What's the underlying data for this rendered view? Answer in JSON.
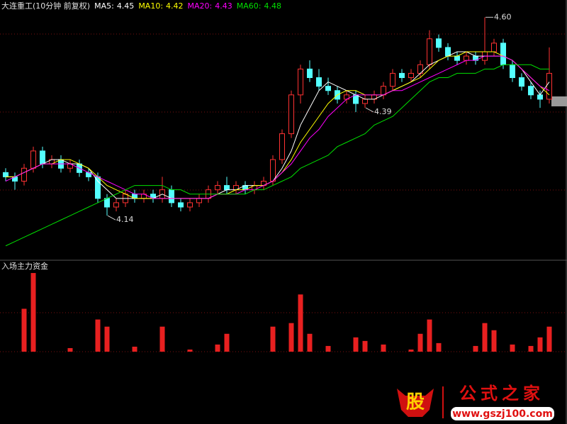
{
  "chart_data": [
    {
      "type": "candlestick",
      "title": "大连重工(10分钟 前复权)",
      "open": [
        4.24,
        4.23,
        4.22,
        4.25,
        4.29,
        4.26,
        4.27,
        4.25,
        4.26,
        4.24,
        4.23,
        4.18,
        4.16,
        4.17,
        4.19,
        4.18,
        4.19,
        4.18,
        4.2,
        4.17,
        4.16,
        4.17,
        4.18,
        4.2,
        4.21,
        4.2,
        4.21,
        4.2,
        4.21,
        4.22,
        4.27,
        4.33,
        4.42,
        4.48,
        4.46,
        4.44,
        4.43,
        4.41,
        4.42,
        4.4,
        4.41,
        4.42,
        4.44,
        4.47,
        4.46,
        4.47,
        4.49,
        4.55,
        4.53,
        4.51,
        4.5,
        4.51,
        4.5,
        4.52,
        4.54,
        4.49,
        4.46,
        4.44,
        4.42,
        4.41
      ],
      "high": [
        4.25,
        4.24,
        4.26,
        4.3,
        4.3,
        4.28,
        4.28,
        4.27,
        4.27,
        4.25,
        4.24,
        4.19,
        4.18,
        4.2,
        4.2,
        4.2,
        4.2,
        4.23,
        4.21,
        4.18,
        4.18,
        4.19,
        4.21,
        4.22,
        4.23,
        4.22,
        4.22,
        4.22,
        4.23,
        4.28,
        4.34,
        4.43,
        4.49,
        4.5,
        4.48,
        4.46,
        4.44,
        4.43,
        4.43,
        4.42,
        4.43,
        4.45,
        4.48,
        4.48,
        4.48,
        4.5,
        4.57,
        4.56,
        4.54,
        4.52,
        4.52,
        4.52,
        4.6,
        4.55,
        4.55,
        4.5,
        4.47,
        4.45,
        4.43,
        4.53
      ],
      "low": [
        4.22,
        4.2,
        4.21,
        4.24,
        4.25,
        4.25,
        4.24,
        4.24,
        4.23,
        4.22,
        4.17,
        4.14,
        4.15,
        4.16,
        4.17,
        4.17,
        4.17,
        4.17,
        4.16,
        4.15,
        4.15,
        4.16,
        4.17,
        4.19,
        4.19,
        4.19,
        4.19,
        4.19,
        4.2,
        4.21,
        4.26,
        4.32,
        4.4,
        4.45,
        4.43,
        4.42,
        4.4,
        4.4,
        4.38,
        4.39,
        4.4,
        4.41,
        4.43,
        4.45,
        4.45,
        4.46,
        4.48,
        4.52,
        4.5,
        4.49,
        4.49,
        4.49,
        4.49,
        4.51,
        4.48,
        4.45,
        4.43,
        4.41,
        4.39,
        4.4
      ],
      "close": [
        4.23,
        4.22,
        4.25,
        4.29,
        4.26,
        4.27,
        4.25,
        4.26,
        4.24,
        4.23,
        4.18,
        4.16,
        4.17,
        4.19,
        4.18,
        4.19,
        4.18,
        4.2,
        4.17,
        4.16,
        4.17,
        4.18,
        4.2,
        4.21,
        4.2,
        4.21,
        4.2,
        4.21,
        4.22,
        4.27,
        4.33,
        4.42,
        4.48,
        4.46,
        4.44,
        4.43,
        4.41,
        4.42,
        4.4,
        4.41,
        4.42,
        4.44,
        4.47,
        4.46,
        4.47,
        4.49,
        4.55,
        4.53,
        4.51,
        4.5,
        4.51,
        4.5,
        4.52,
        4.54,
        4.49,
        4.46,
        4.44,
        4.42,
        4.41,
        4.47
      ],
      "up_color": "#ff3232",
      "down_color": "#54ffff",
      "ylim": [
        4.04,
        4.64
      ],
      "series": [
        {
          "name": "MA5:",
          "color": "#ffffff",
          "values": [
            4.23,
            4.23,
            4.24,
            4.25,
            4.26,
            4.27,
            4.27,
            4.26,
            4.26,
            4.25,
            4.22,
            4.2,
            4.18,
            4.18,
            4.18,
            4.18,
            4.18,
            4.19,
            4.18,
            4.18,
            4.18,
            4.18,
            4.18,
            4.19,
            4.2,
            4.2,
            4.21,
            4.21,
            4.21,
            4.22,
            4.25,
            4.29,
            4.35,
            4.39,
            4.43,
            4.45,
            4.44,
            4.43,
            4.42,
            4.41,
            4.41,
            4.42,
            4.43,
            4.44,
            4.45,
            4.47,
            4.49,
            4.5,
            4.51,
            4.52,
            4.52,
            4.51,
            4.51,
            4.51,
            4.51,
            4.5,
            4.48,
            4.45,
            4.42,
            4.45
          ]
        },
        {
          "name": "MA10:",
          "color": "#ffff00",
          "values": [
            4.23,
            4.23,
            4.24,
            4.25,
            4.26,
            4.26,
            4.27,
            4.27,
            4.26,
            4.25,
            4.23,
            4.21,
            4.2,
            4.19,
            4.18,
            4.18,
            4.18,
            4.18,
            4.18,
            4.18,
            4.18,
            4.18,
            4.18,
            4.19,
            4.19,
            4.2,
            4.2,
            4.21,
            4.21,
            4.22,
            4.24,
            4.27,
            4.31,
            4.34,
            4.37,
            4.4,
            4.42,
            4.43,
            4.43,
            4.42,
            4.42,
            4.42,
            4.43,
            4.44,
            4.45,
            4.46,
            4.48,
            4.5,
            4.51,
            4.51,
            4.52,
            4.52,
            4.52,
            4.52,
            4.51,
            4.5,
            4.48,
            4.46,
            4.44,
            4.42
          ]
        },
        {
          "name": "MA20:",
          "color": "#ff00ff",
          "values": [
            4.22,
            4.23,
            4.24,
            4.25,
            4.26,
            4.26,
            4.26,
            4.26,
            4.25,
            4.24,
            4.23,
            4.22,
            4.21,
            4.2,
            4.19,
            4.19,
            4.18,
            4.18,
            4.18,
            4.18,
            4.18,
            4.18,
            4.18,
            4.19,
            4.19,
            4.19,
            4.2,
            4.2,
            4.21,
            4.22,
            4.24,
            4.26,
            4.29,
            4.32,
            4.34,
            4.37,
            4.39,
            4.41,
            4.42,
            4.42,
            4.42,
            4.42,
            4.43,
            4.43,
            4.44,
            4.45,
            4.46,
            4.47,
            4.48,
            4.49,
            4.5,
            4.5,
            4.51,
            4.51,
            4.51,
            4.5,
            4.48,
            4.46,
            4.44,
            4.43
          ]
        },
        {
          "name": "MA60:",
          "color": "#00e000",
          "values": [
            4.07,
            4.08,
            4.09,
            4.1,
            4.11,
            4.12,
            4.13,
            4.14,
            4.15,
            4.16,
            4.17,
            4.18,
            4.19,
            4.2,
            4.21,
            4.21,
            4.21,
            4.21,
            4.2,
            4.2,
            4.19,
            4.19,
            4.19,
            4.19,
            4.19,
            4.19,
            4.19,
            4.2,
            4.2,
            4.21,
            4.22,
            4.23,
            4.25,
            4.26,
            4.27,
            4.28,
            4.3,
            4.31,
            4.32,
            4.33,
            4.35,
            4.36,
            4.37,
            4.39,
            4.41,
            4.43,
            4.45,
            4.46,
            4.46,
            4.47,
            4.47,
            4.47,
            4.48,
            4.48,
            4.49,
            4.49,
            4.49,
            4.49,
            4.48,
            4.48
          ]
        }
      ],
      "annotations": [
        {
          "value": 4.6,
          "label": "4.60"
        },
        {
          "value": 4.14,
          "label": "4.14"
        },
        {
          "value": 4.39,
          "label": "4.39"
        }
      ]
    },
    {
      "type": "bar",
      "title": "入场主力资金",
      "color": "#e82020",
      "ylim": [
        0,
        115
      ],
      "values": [
        0,
        0,
        60,
        110,
        0,
        0,
        0,
        5,
        0,
        0,
        45,
        35,
        0,
        0,
        7,
        0,
        0,
        35,
        0,
        0,
        3,
        0,
        0,
        10,
        25,
        0,
        0,
        0,
        0,
        35,
        0,
        40,
        80,
        25,
        0,
        8,
        0,
        0,
        20,
        15,
        0,
        10,
        0,
        0,
        3,
        25,
        45,
        12,
        0,
        0,
        0,
        8,
        40,
        30,
        0,
        10,
        0,
        8,
        20,
        35
      ]
    }
  ],
  "watermark": {
    "logo": "股",
    "name": "公式之家",
    "url": "www.gszj100.com"
  }
}
